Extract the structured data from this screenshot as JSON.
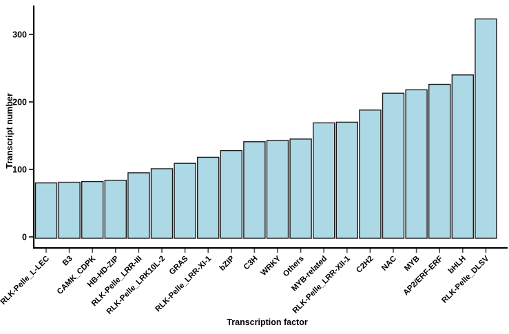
{
  "chart_data": {
    "type": "bar",
    "title": "",
    "xlabel": "Transcription factor",
    "ylabel": "Transcript number",
    "categories": [
      "RLK-Pelle_L-LEC",
      "B3",
      "CAMK_CDPK",
      "HB-HD-ZIP",
      "RLK-Pelle_LRR-III",
      "RLK-Pelle_LRK10L-2",
      "GRAS",
      "RLK-Pelle_LRR-XI-1",
      "bZIP",
      "C3H",
      "WRKY",
      "Others",
      "MYB-related",
      "RLK-Pelle_LRR-XII-1",
      "C2H2",
      "NAC",
      "MYB",
      "AP2/ERF-ERF",
      "bHLH",
      "RLK-Pelle_DLSV"
    ],
    "values": [
      80,
      81,
      82,
      84,
      95,
      101,
      109,
      118,
      128,
      141,
      143,
      145,
      169,
      170,
      188,
      213,
      218,
      226,
      240,
      323
    ],
    "yticks": [
      0,
      100,
      200,
      300
    ],
    "ylim": [
      0,
      343
    ],
    "grid": false,
    "legend": null,
    "bar_fill": "#ADD8E6",
    "bar_stroke": "#1b1b1b",
    "axis_color": "#000000",
    "background": "#ffffff"
  }
}
